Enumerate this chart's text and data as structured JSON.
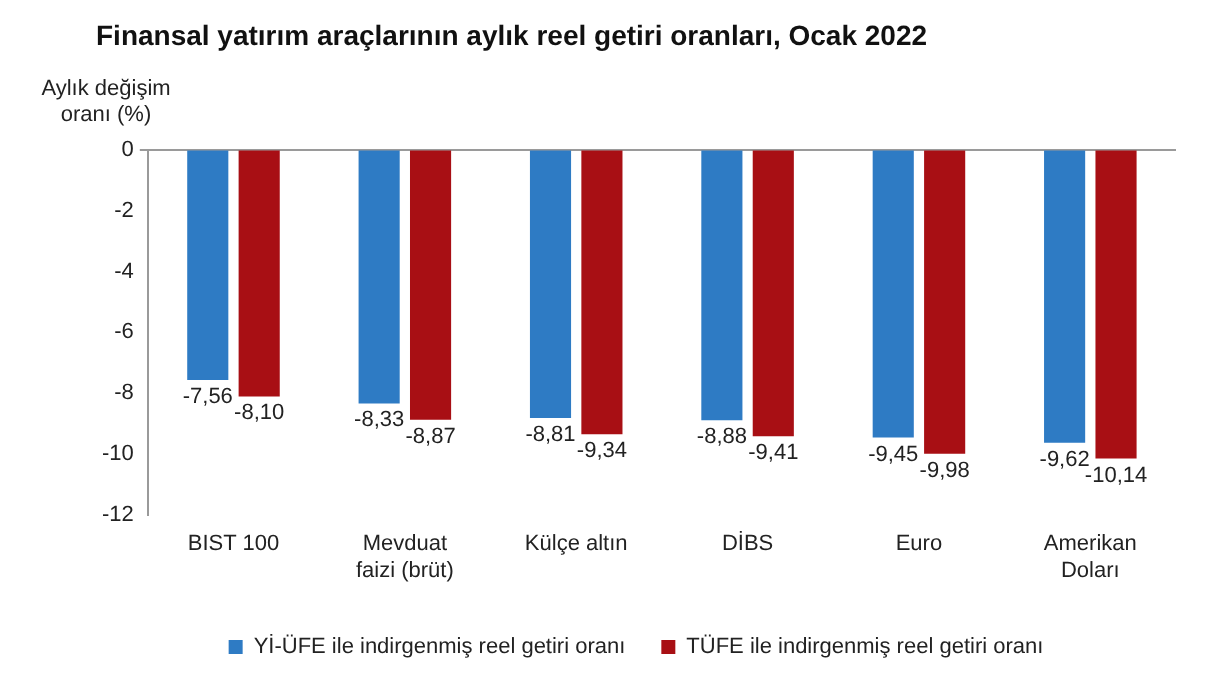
{
  "chart_data": {
    "type": "bar",
    "title": "Finansal yatırım araçlarının aylık reel getiri oranları, Ocak 2022",
    "ylabel": "Aylık değişim oranı (%)",
    "categories": [
      "BIST 100",
      "Mevduat faizi (brüt)",
      "Külçe altın",
      "DİBS",
      "Euro",
      "Amerikan Doları"
    ],
    "series": [
      {
        "name": "Yİ-ÜFE ile indirgenmiş reel getiri oranı",
        "color": "#2e7bc4",
        "values": [
          -7.56,
          -8.33,
          -8.81,
          -8.88,
          -9.45,
          -9.62
        ],
        "value_labels": [
          "-7,56",
          "-8,33",
          "-8,81",
          "-8,88",
          "-9,45",
          "-9,62"
        ]
      },
      {
        "name": "TÜFE ile indirgenmiş reel getiri oranı",
        "color": "#a80f14",
        "values": [
          -8.1,
          -8.87,
          -9.34,
          -9.41,
          -9.98,
          -10.14
        ],
        "value_labels": [
          "-8,10",
          "-8,87",
          "-9,34",
          "-9,41",
          "-9,98",
          "-10,14"
        ]
      }
    ],
    "ylim": [
      -12,
      0
    ],
    "yticks": [
      0,
      -2,
      -4,
      -6,
      -8,
      -10,
      -12
    ],
    "grid": false,
    "legend": "bottom"
  }
}
